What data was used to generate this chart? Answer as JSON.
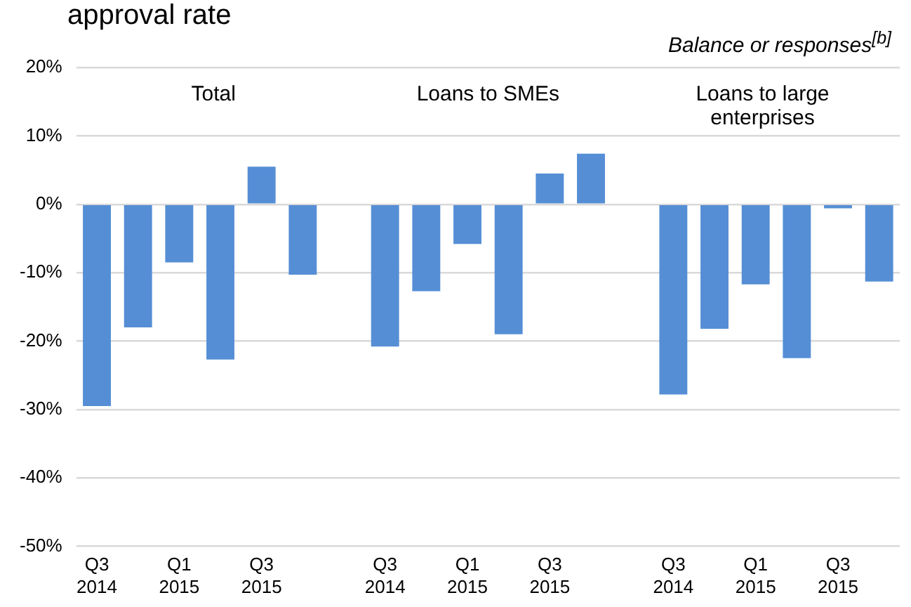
{
  "chart_data": {
    "type": "bar",
    "title": "approval rate",
    "ylabel": "Balance or responses$^{[b]}$",
    "categories": [
      "Q3 2014",
      null,
      "Q1 2015",
      null,
      "Q3 2015",
      null,
      null,
      "Q3 2014",
      null,
      "Q1 2015",
      null,
      "Q3 2015",
      null,
      null,
      "Q3 2014",
      null,
      "Q1 2015",
      null,
      "Q3 2015",
      null
    ],
    "values": [
      -29.5,
      -18,
      -8.5,
      -22.7,
      5.5,
      -10.3,
      null,
      -20.8,
      -12.7,
      -5.8,
      -19,
      4.5,
      7.4,
      null,
      -27.8,
      -18.2,
      -11.7,
      -22.5,
      -0.6,
      -11.3
    ],
    "color": "#558ed5",
    "ylim": [
      -50,
      20
    ],
    "yticks": [
      {
        "value": -50,
        "label": "-50%"
      },
      {
        "value": -40,
        "label": "-40%"
      },
      {
        "value": -30,
        "label": "-30%"
      },
      {
        "value": -20,
        "label": "-20%"
      },
      {
        "value": -10,
        "label": "-10%"
      },
      {
        "value": 0,
        "label": "0%"
      },
      {
        "value": 10,
        "label": "10%"
      },
      {
        "value": 20,
        "label": "20%"
      }
    ],
    "grid": "y",
    "legend": false,
    "annotations": [
      "Total",
      "Loans to SMEs",
      "Loans to large enterprises"
    ]
  }
}
